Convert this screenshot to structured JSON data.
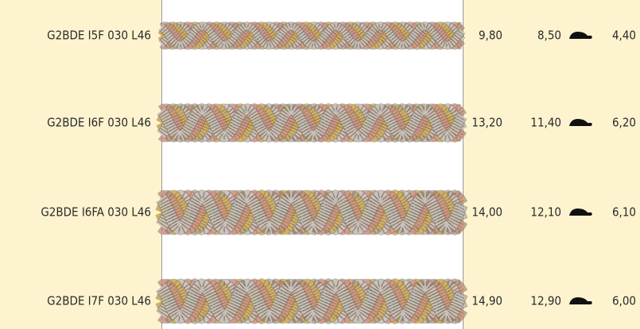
{
  "rows": [
    {
      "code": "G2BDE I5F 030 L46",
      "price_1": "9,80",
      "price_2": "8,50",
      "price_3": "4,40"
    },
    {
      "code": "G2BDE I6F 030 L46",
      "price_1": "13,20",
      "price_2": "11,40",
      "price_3": "6,20"
    },
    {
      "code": "G2BDE I6FA 030 L46",
      "price_1": "14,00",
      "price_2": "12,10",
      "price_3": "6,10"
    },
    {
      "code": "G2BDE I7F 030 L46",
      "price_1": "14,90",
      "price_2": "12,90",
      "price_3": "6,00"
    }
  ]
}
